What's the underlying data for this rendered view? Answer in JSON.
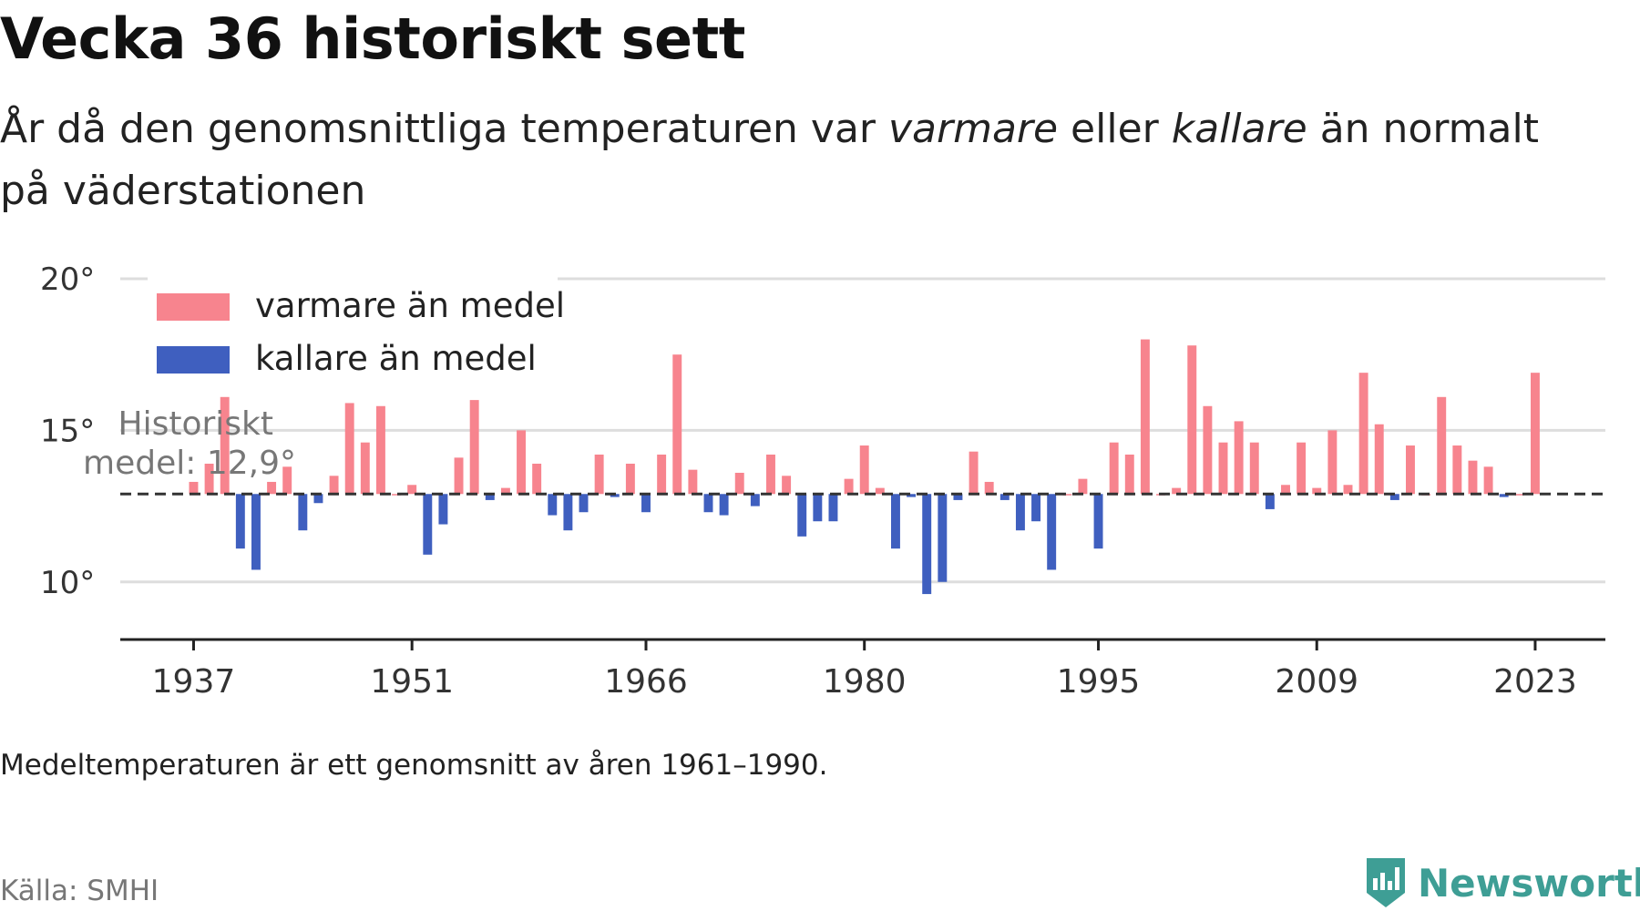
{
  "title": "Vecka 36 historiskt sett",
  "subtitle": {
    "part1": "År då den genomsnittliga temperaturen var ",
    "warm_word": "varmare",
    "part2": " eller ",
    "cold_word": "kallare",
    "part3": " än normalt på väderstationen"
  },
  "footnote": "Medeltemperaturen är ett genomsnitt av åren 1961–1990.",
  "source": "Källa: SMHI",
  "brand": {
    "name": "Newsworthy",
    "icon": "newsworthy-logo-icon",
    "color": "#3e9e95"
  },
  "colors": {
    "warm": "#f7848e",
    "cold": "#3f5fbf",
    "grid": "#dddddd",
    "axis": "#222222"
  },
  "chart_data": {
    "type": "bar",
    "baseline": 12.9,
    "baseline_label": "Historiskt medel: 12,9°",
    "ylim": [
      8.1,
      20
    ],
    "yticks": [
      {
        "value": 10,
        "label": "10°"
      },
      {
        "value": 15,
        "label": "15°"
      },
      {
        "value": 20,
        "label": "20°"
      }
    ],
    "xticks": [
      {
        "value": 1937,
        "label": "1937"
      },
      {
        "value": 1951,
        "label": "1951"
      },
      {
        "value": 1966,
        "label": "1966"
      },
      {
        "value": 1980,
        "label": "1980"
      },
      {
        "value": 1995,
        "label": "1995"
      },
      {
        "value": 2009,
        "label": "2009"
      },
      {
        "value": 2023,
        "label": "2023"
      }
    ],
    "xlim": [
      1932.3,
      2027.5
    ],
    "grid": true,
    "legend": {
      "placement": "top-left",
      "entries": [
        {
          "key": "warm",
          "label": "varmare än medel"
        },
        {
          "key": "cold",
          "label": "kallare än medel"
        }
      ]
    },
    "years": [
      1937,
      1938,
      1939,
      1940,
      1941,
      1942,
      1943,
      1944,
      1945,
      1946,
      1947,
      1948,
      1949,
      1950,
      1951,
      1952,
      1953,
      1954,
      1955,
      1956,
      1957,
      1958,
      1959,
      1960,
      1961,
      1962,
      1963,
      1964,
      1965,
      1966,
      1967,
      1968,
      1969,
      1970,
      1971,
      1972,
      1973,
      1974,
      1975,
      1976,
      1977,
      1978,
      1979,
      1980,
      1981,
      1982,
      1983,
      1984,
      1985,
      1986,
      1987,
      1988,
      1989,
      1990,
      1991,
      1992,
      1993,
      1994,
      1995,
      1996,
      1997,
      1998,
      1999,
      2000,
      2001,
      2002,
      2003,
      2004,
      2005,
      2006,
      2007,
      2008,
      2009,
      2010,
      2011,
      2012,
      2013,
      2014,
      2015,
      2016,
      2017,
      2018,
      2019,
      2020,
      2021,
      2022,
      2023
    ],
    "values": [
      13.3,
      13.9,
      16.1,
      11.1,
      10.4,
      13.3,
      13.8,
      11.7,
      12.6,
      13.5,
      15.9,
      14.6,
      15.8,
      12.9,
      13.2,
      10.9,
      11.9,
      14.1,
      16.0,
      12.7,
      13.1,
      15.0,
      13.9,
      12.2,
      11.7,
      12.3,
      14.2,
      12.8,
      13.9,
      12.3,
      14.2,
      17.5,
      13.7,
      12.3,
      12.2,
      13.6,
      12.5,
      14.2,
      13.5,
      11.5,
      12.0,
      12.0,
      13.4,
      14.5,
      13.1,
      11.1,
      12.8,
      9.6,
      10.0,
      12.7,
      14.3,
      13.3,
      12.7,
      11.7,
      12.0,
      10.4,
      12.9,
      13.4,
      11.1,
      14.6,
      14.2,
      18.0,
      12.9,
      13.1,
      17.8,
      15.8,
      14.6,
      15.3,
      14.6,
      12.4,
      13.2,
      14.6,
      13.1,
      15.0,
      13.2,
      16.9,
      15.2,
      12.7,
      14.5,
      12.9,
      16.1,
      14.5,
      14.0,
      13.8,
      12.8,
      12.9,
      16.9
    ]
  }
}
